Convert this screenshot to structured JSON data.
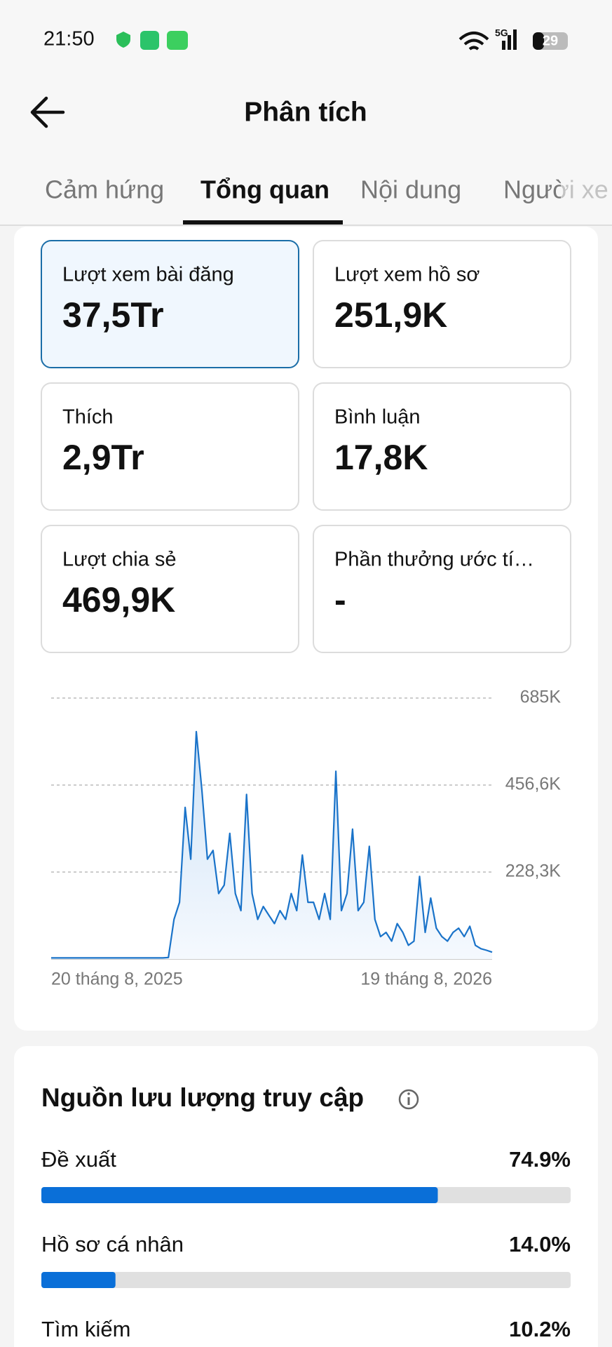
{
  "status_bar": {
    "time": "21:50",
    "network": "5G",
    "battery": "29"
  },
  "header": {
    "title": "Phân tích"
  },
  "tabs": [
    "Cảm hứng",
    "Tổng quan",
    "Nội dung",
    "Người xe"
  ],
  "metrics": [
    {
      "label": "Lượt xem bài đăng",
      "value": "37,5Tr"
    },
    {
      "label": "Lượt xem hồ sơ",
      "value": "251,9K"
    },
    {
      "label": "Thích",
      "value": "2,9Tr"
    },
    {
      "label": "Bình luận",
      "value": "17,8K"
    },
    {
      "label": "Lượt chia sẻ",
      "value": "469,9K"
    },
    {
      "label": "Phần thưởng ước tí…",
      "value": "-"
    }
  ],
  "chart_data": [
    {
      "type": "line",
      "color": "#1a73c9",
      "categories": [
        "20 tháng 8, 2025",
        null,
        null,
        null,
        null,
        null,
        null,
        null,
        null,
        null,
        null,
        null,
        null,
        null,
        null,
        null,
        null,
        null,
        null,
        null,
        null,
        null,
        null,
        null,
        null,
        null,
        null,
        null,
        null,
        null,
        null,
        null,
        null,
        null,
        null,
        null,
        null,
        null,
        null,
        null,
        null,
        null,
        null,
        null,
        null,
        null,
        null,
        null,
        null,
        null,
        null,
        null,
        null,
        null,
        null,
        null,
        null,
        null,
        null,
        null,
        null,
        null,
        null,
        null,
        null,
        null,
        null,
        null,
        null,
        null,
        null,
        null,
        null,
        null,
        null,
        null,
        null,
        null,
        null,
        "19 tháng 8, 2026"
      ],
      "values": [
        3000,
        3000,
        3000,
        3000,
        3000,
        3000,
        3000,
        3000,
        3000,
        3000,
        3000,
        3000,
        3000,
        3000,
        3000,
        3000,
        3000,
        3000,
        3000,
        3000,
        3000,
        4000,
        104000,
        149000,
        398000,
        262000,
        597000,
        443000,
        262000,
        285000,
        172000,
        194000,
        330000,
        172000,
        127000,
        432000,
        172000,
        104000,
        138000,
        115000,
        93000,
        127000,
        104000,
        172000,
        127000,
        273000,
        149000,
        149000,
        104000,
        172000,
        104000,
        493000,
        127000,
        172000,
        341000,
        127000,
        149000,
        296000,
        104000,
        59000,
        70000,
        47000,
        93000,
        70000,
        36000,
        47000,
        217000,
        70000,
        160000,
        81000,
        59000,
        47000,
        70000,
        81000,
        59000,
        86000,
        36000,
        27000,
        23000,
        18000
      ],
      "ylim": [
        0,
        685000
      ],
      "yticks": [
        {
          "value": 228300,
          "label": "228,3K"
        },
        {
          "value": 456600,
          "label": "456,6K"
        },
        {
          "value": 685000,
          "label": "685K"
        }
      ],
      "grid": true
    },
    {
      "type": "bar",
      "orientation": "horizontal",
      "title": "Nguồn lưu lượng truy cập",
      "color": "#0a6fd8",
      "categories": [
        "Đề xuất",
        "Hồ sơ cá nhân",
        "Tìm kiếm"
      ],
      "values": [
        74.9,
        14.0,
        10.2
      ],
      "value_labels": [
        "74.9%",
        "14.0%",
        "10.2%"
      ],
      "xlim": [
        0,
        100
      ]
    }
  ]
}
